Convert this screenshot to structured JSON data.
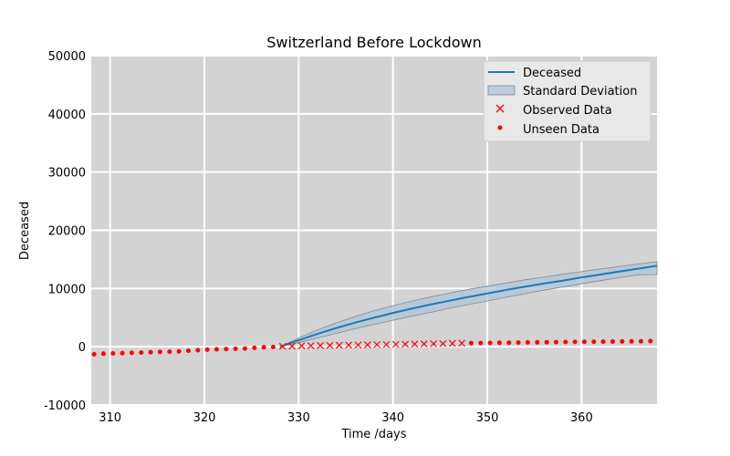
{
  "chart_data": {
    "type": "line",
    "title": "Switzerland Before Lockdown",
    "xlabel": "Time /days",
    "ylabel": "Deceased",
    "xlim": [
      308,
      368
    ],
    "ylim": [
      -10000,
      50000
    ],
    "xticks": [
      310,
      320,
      330,
      340,
      350,
      360
    ],
    "yticks": [
      -10000,
      0,
      10000,
      20000,
      30000,
      40000,
      50000
    ],
    "grid": true,
    "legend_position": "top-right",
    "colors": {
      "plot_bg": "#d3d3d3",
      "grid": "#ffffff",
      "line": "#1f77b4",
      "band_fill": "#aec5d9",
      "band_edge": "#7f8a93",
      "points": "#ff0000"
    },
    "series": [
      {
        "name": "Deceased",
        "kind": "line",
        "x": [
          328,
          330,
          332,
          334,
          336,
          338,
          340,
          342,
          344,
          346,
          348,
          350,
          352,
          354,
          356,
          358,
          360,
          362,
          364,
          366,
          368
        ],
        "y": [
          0,
          1100,
          2200,
          3200,
          4150,
          5000,
          5800,
          6550,
          7250,
          7900,
          8550,
          9150,
          9750,
          10300,
          10850,
          11350,
          11900,
          12400,
          12900,
          13400,
          13900
        ]
      },
      {
        "name": "Standard Deviation",
        "kind": "band",
        "x": [
          328,
          330,
          332,
          334,
          336,
          338,
          340,
          342,
          344,
          346,
          348,
          350,
          352,
          354,
          356,
          358,
          360,
          362,
          364,
          366,
          368
        ],
        "upper": [
          0,
          1500,
          2900,
          4100,
          5200,
          6200,
          7050,
          7850,
          8550,
          9200,
          9850,
          10400,
          10950,
          11500,
          11950,
          12450,
          12900,
          13350,
          13800,
          14200,
          14600
        ],
        "lower": [
          0,
          700,
          1500,
          2300,
          3100,
          3850,
          4550,
          5250,
          5900,
          6600,
          7250,
          7850,
          8500,
          9100,
          9700,
          10250,
          10800,
          11350,
          11850,
          12350,
          12400
        ]
      },
      {
        "name": "Observed Data",
        "kind": "x-markers",
        "x": [
          328.3,
          329.3,
          330.3,
          331.3,
          332.3,
          333.3,
          334.3,
          335.3,
          336.3,
          337.3,
          338.3,
          339.3,
          340.3,
          341.3,
          342.3,
          343.3,
          344.3,
          345.3,
          346.3,
          347.3
        ],
        "y": [
          50,
          100,
          150,
          180,
          200,
          230,
          250,
          280,
          300,
          330,
          360,
          380,
          400,
          420,
          450,
          480,
          500,
          530,
          560,
          600
        ]
      },
      {
        "name": "Unseen Data",
        "kind": "dots",
        "x": [
          308.3,
          309.3,
          310.3,
          311.3,
          312.3,
          313.3,
          314.3,
          315.3,
          316.3,
          317.3,
          318.3,
          319.3,
          320.3,
          321.3,
          322.3,
          323.3,
          324.3,
          325.3,
          326.3,
          327.3,
          348.3,
          349.3,
          350.3,
          351.3,
          352.3,
          353.3,
          354.3,
          355.3,
          356.3,
          357.3,
          358.3,
          359.3,
          360.3,
          361.3,
          362.3,
          363.3,
          364.3,
          365.3,
          366.3,
          367.3
        ],
        "y": [
          -1300,
          -1200,
          -1150,
          -1100,
          -1050,
          -1000,
          -950,
          -900,
          -850,
          -800,
          -700,
          -600,
          -500,
          -450,
          -400,
          -350,
          -300,
          -200,
          -100,
          -50,
          620,
          640,
          660,
          680,
          700,
          720,
          740,
          760,
          780,
          800,
          810,
          820,
          840,
          860,
          870,
          880,
          900,
          920,
          940,
          960
        ]
      }
    ]
  }
}
